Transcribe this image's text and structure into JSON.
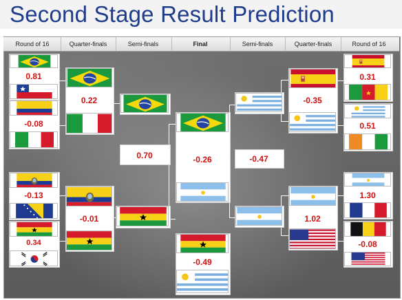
{
  "title": "Second Stage Result Prediction",
  "headers": {
    "round_of_16_left": "Round of 16",
    "quarter_finals_left": "Quarter-finals",
    "semi_finals_left": "Semi-finals",
    "final": "Final",
    "semi_finals_right": "Semi-finals",
    "quarter_finals_right": "Quarter-finals",
    "round_of_16_right": "Round of 16"
  },
  "matches": {
    "r16_left_1": {
      "top_flag": "brazil-flag",
      "bottom_flag": "chile-flag",
      "value": "0.81"
    },
    "r16_left_2": {
      "top_flag": "colombia-flag",
      "bottom_flag": "italy-flag",
      "value": "-0.08"
    },
    "r16_left_3": {
      "top_flag": "ecuador-flag",
      "bottom_flag": "bosnia-flag",
      "value": "-0.13"
    },
    "r16_left_4": {
      "top_flag": "ghana-flag",
      "bottom_flag": "korea-flag",
      "value": "0.34"
    },
    "qf_left_1": {
      "top_flag": "brazil-flag",
      "bottom_flag": "italy-flag",
      "value": "0.22"
    },
    "qf_left_2": {
      "top_flag": "ecuador-flag",
      "bottom_flag": "ghana-flag",
      "value": "-0.01"
    },
    "sf_left": {
      "top_flag": "brazil-flag",
      "bottom_flag": "ghana-flag",
      "value": "0.70"
    },
    "final_left": {
      "top_flag": "brazil-flag",
      "bottom_flag": "argentina-flag",
      "value": "-0.26"
    },
    "third_place": {
      "top_flag": "ghana-flag",
      "bottom_flag": "uruguay-flag",
      "value": "-0.49"
    },
    "sf_right": {
      "top_flag": "uruguay-flag",
      "bottom_flag": "argentina-flag",
      "value": "-0.47"
    },
    "qf_right_1": {
      "top_flag": "spain-flag",
      "bottom_flag": "uruguay-flag",
      "value": "-0.35"
    },
    "qf_right_2": {
      "top_flag": "argentina-flag",
      "bottom_flag": "usa-flag",
      "value": "1.02"
    },
    "r16_right_1": {
      "top_flag": "spain-flag",
      "bottom_flag": "cameroon-flag",
      "value": "0.31"
    },
    "r16_right_2": {
      "top_flag": "uruguay-flag",
      "bottom_flag": "ivory-coast-flag",
      "value": "0.51"
    },
    "r16_right_3": {
      "top_flag": "argentina-flag",
      "bottom_flag": "france-flag",
      "value": "1.30"
    },
    "r16_right_4": {
      "top_flag": "belgium-flag",
      "bottom_flag": "usa-flag",
      "value": "-0.08"
    }
  },
  "colors": {
    "title": "#1f3c8a",
    "value": "#d01010",
    "panel": "#6b6b6b"
  }
}
